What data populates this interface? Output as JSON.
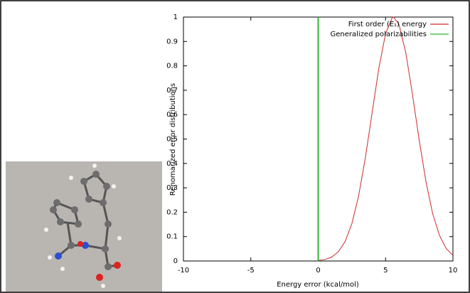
{
  "chart_data": {
    "type": "line",
    "xlabel": "Energy error (kcal/mol)",
    "ylabel": "Renomarized error distributions",
    "xlim": [
      -10,
      10
    ],
    "xticks": [
      -10,
      -5,
      0,
      5,
      10
    ],
    "ylim": [
      0,
      1
    ],
    "yticks": [
      0,
      0.1,
      0.2,
      0.3,
      0.4,
      0.5,
      0.6,
      0.7,
      0.8,
      0.9,
      1
    ],
    "legend": "upper right",
    "series": [
      {
        "name": "First order (E₁) energy",
        "color": "#cc2a2a",
        "x": [
          0,
          0.5,
          1,
          1.5,
          2,
          2.5,
          3,
          3.5,
          4,
          4.5,
          5,
          5.5,
          5.6,
          6,
          6.5,
          7,
          7.5,
          8,
          8.5,
          9,
          9.5,
          10
        ],
        "values": [
          0.002,
          0.006,
          0.016,
          0.038,
          0.08,
          0.153,
          0.267,
          0.423,
          0.607,
          0.79,
          0.932,
          0.998,
          1,
          0.969,
          0.854,
          0.682,
          0.494,
          0.325,
          0.193,
          0.105,
          0.051,
          0.023
        ]
      },
      {
        "name": "Generalized polarizabilities",
        "color": "#2fb52f",
        "x": [
          0,
          0
        ],
        "values": [
          0,
          1
        ]
      }
    ]
  }
}
